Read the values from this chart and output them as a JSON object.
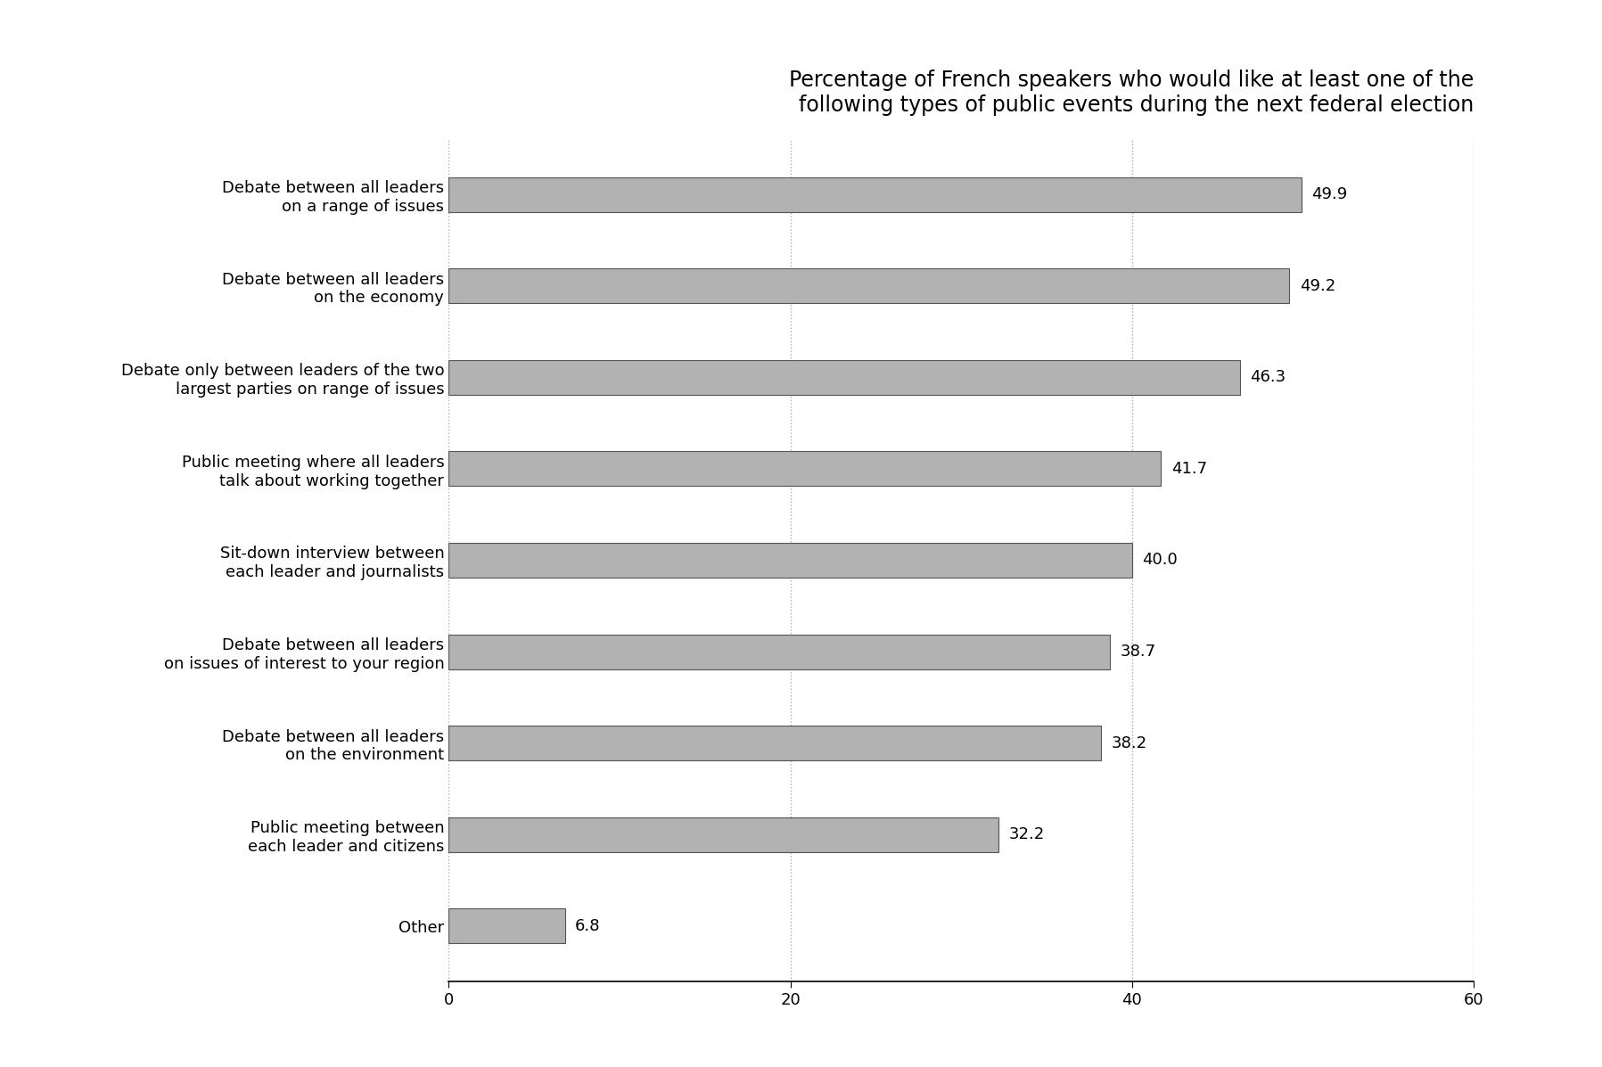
{
  "title": "Percentage of French speakers who would like at least one of the\nfollowing types of public events during the next federal election",
  "categories": [
    "Other",
    "Public meeting between\neach leader and citizens",
    "Debate between all leaders\non the environment",
    "Debate between all leaders\non issues of interest to your region",
    "Sit-down interview between\neach leader and journalists",
    "Public meeting where all leaders\ntalk about working together",
    "Debate only between leaders of the two\nlargest parties on range of issues",
    "Debate between all leaders\non the economy",
    "Debate between all leaders\non a range of issues"
  ],
  "values": [
    6.8,
    32.2,
    38.2,
    38.7,
    40.0,
    41.7,
    46.3,
    49.2,
    49.9
  ],
  "bar_color": "#b2b2b2",
  "bar_edge_color": "#555555",
  "bar_edge_width": 0.8,
  "xlim": [
    0,
    60
  ],
  "xticks": [
    0,
    20,
    40,
    60
  ],
  "title_fontsize": 17,
  "label_fontsize": 13,
  "value_fontsize": 13,
  "bar_height": 0.38,
  "background_color": "#ffffff",
  "grid_color": "#aaaaaa",
  "grid_linestyle": ":"
}
